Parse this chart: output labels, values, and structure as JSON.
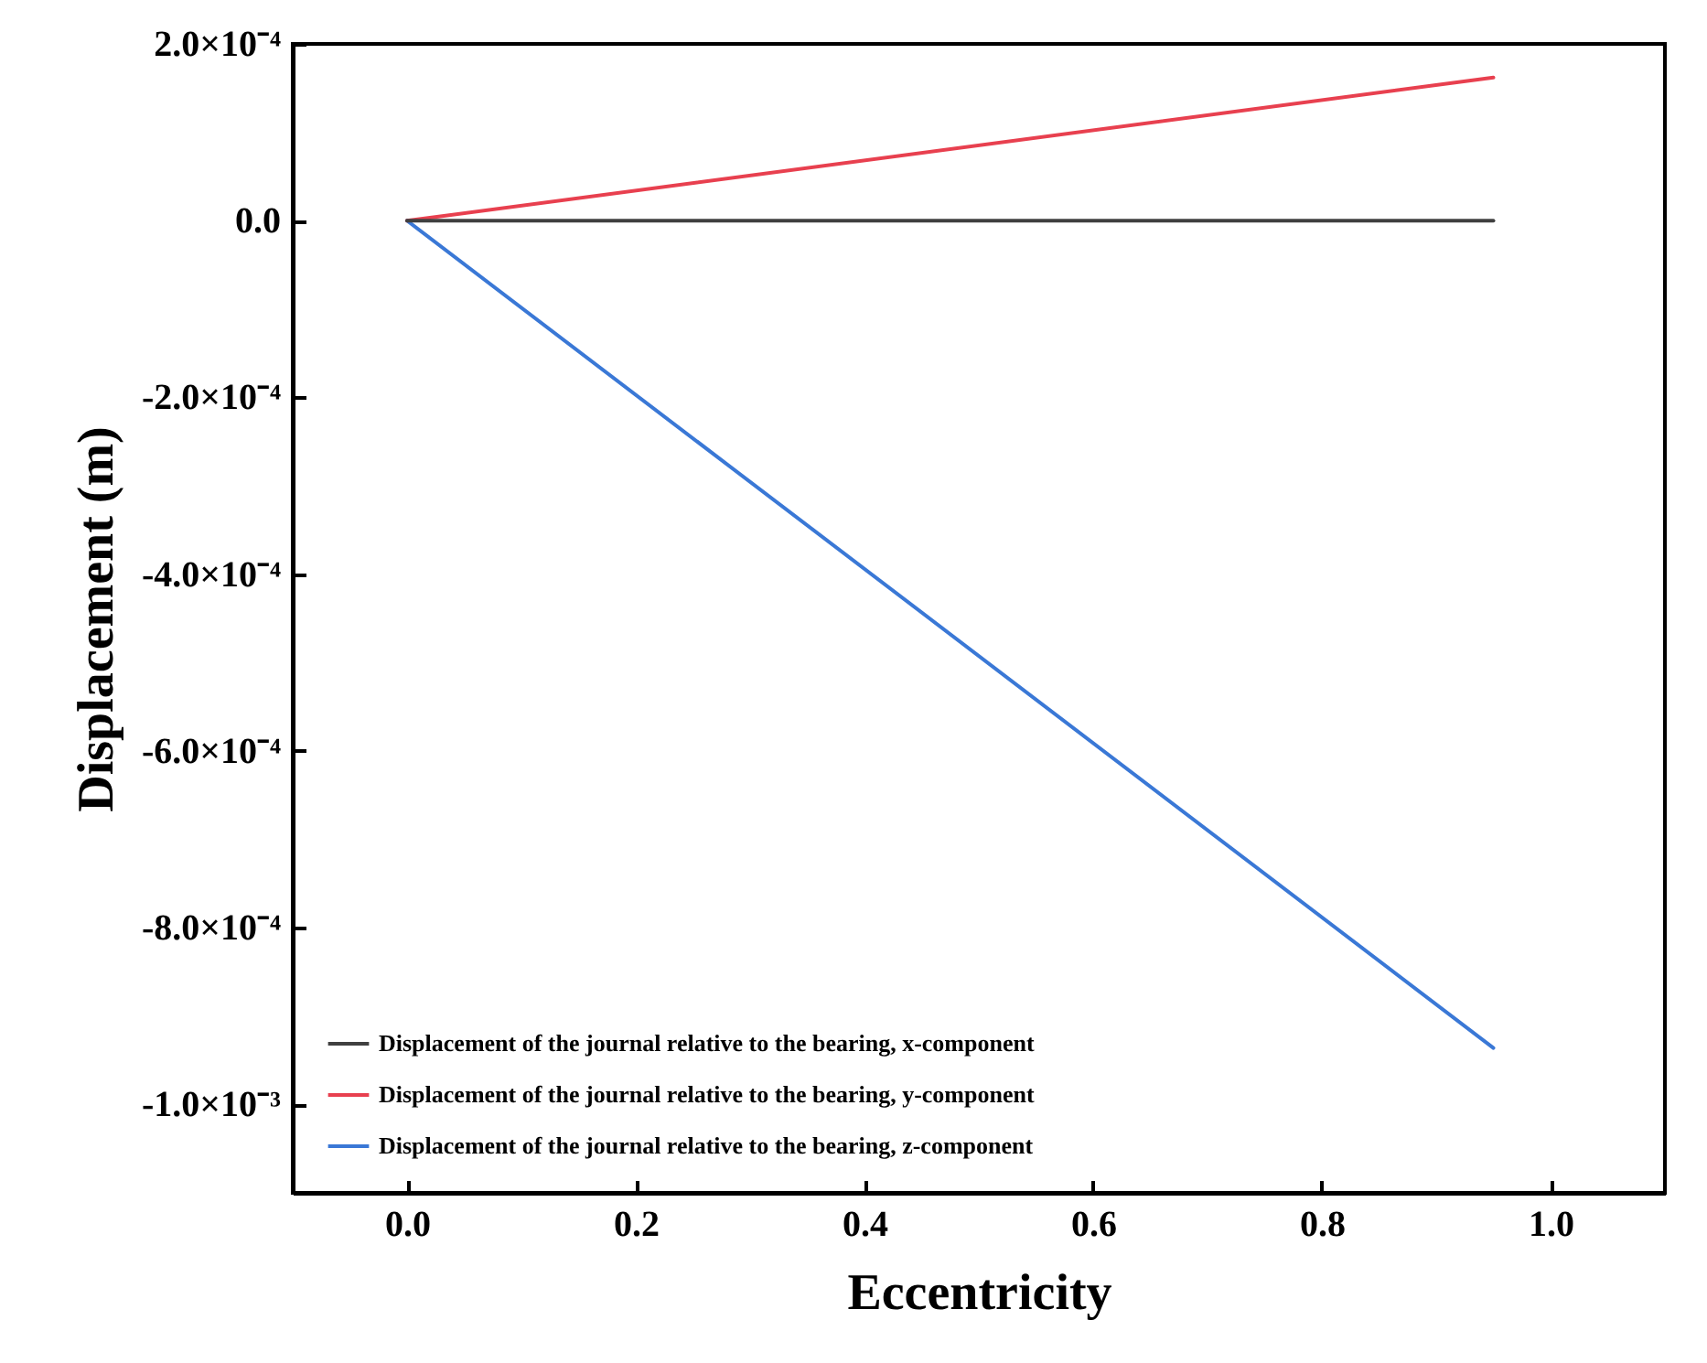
{
  "chart_data": {
    "type": "line",
    "xlabel": "Eccentricity",
    "ylabel": "Displacement (m)",
    "xlim": [
      -0.1,
      1.1
    ],
    "ylim": [
      -0.0011,
      0.0002
    ],
    "xticks": [
      {
        "value": 0,
        "label": "0.0"
      },
      {
        "value": 0.2,
        "label": "0.2"
      },
      {
        "value": 0.4,
        "label": "0.4"
      },
      {
        "value": 0.6,
        "label": "0.6"
      },
      {
        "value": 0.8,
        "label": "0.8"
      },
      {
        "value": 1,
        "label": "1.0"
      }
    ],
    "yticks": [
      {
        "value": 0.0002,
        "label": "2.0×10⁻⁴"
      },
      {
        "value": 0,
        "label": "0.0"
      },
      {
        "value": -0.0002,
        "label": "-2.0×10⁻⁴"
      },
      {
        "value": -0.0004,
        "label": "-4.0×10⁻⁴"
      },
      {
        "value": -0.0006,
        "label": "-6.0×10⁻⁴"
      },
      {
        "value": -0.0008,
        "label": "-8.0×10⁻⁴"
      },
      {
        "value": -0.001,
        "label": "-1.0×10⁻³"
      }
    ],
    "legend": "bottom left",
    "line_style": "solid",
    "x": [
      0,
      0.95
    ],
    "series": [
      {
        "name": "Displacement of the journal relative to the bearing, x-component",
        "color": "#404040",
        "values": [
          0,
          0
        ]
      },
      {
        "name": "Displacement of the journal relative to the bearing, y-component",
        "color": "#e8404f",
        "values": [
          0,
          0.000162
        ]
      },
      {
        "name": "Displacement of the journal relative to the bearing, z-component",
        "color": "#3a78d6",
        "values": [
          0,
          -0.000936
        ]
      }
    ]
  }
}
